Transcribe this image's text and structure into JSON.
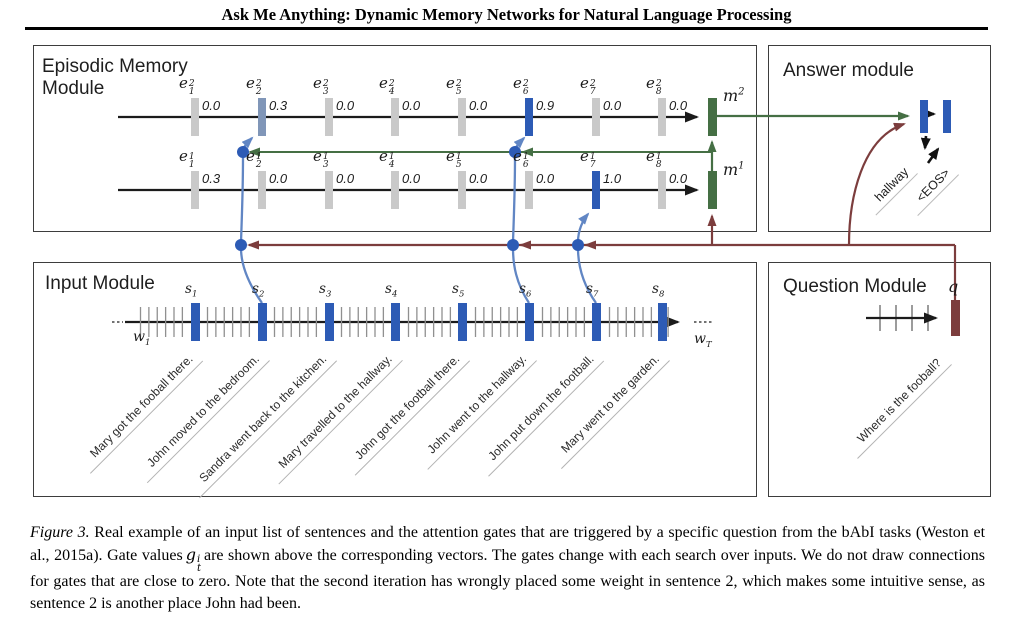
{
  "header": {
    "title": "Ask Me Anything: Dynamic Memory Networks for Natural Language Processing"
  },
  "colors": {
    "active_gate_blue": "#2d5bb5",
    "weak_gate_blue": "#8096b8",
    "inactive_gray": "#c9c9c9",
    "memory_green": "#456f44",
    "question_maroon": "#7c3d3d",
    "attention_curve_blue": "#6186c4",
    "line_black": "#1b1b1b"
  },
  "episodic": {
    "title": "Episodic Memory Module",
    "passes": [
      {
        "m_base": "m",
        "m_sup": "2",
        "vec_base": "e",
        "vec_sup": "2",
        "gates": [
          {
            "sub": "1",
            "value": "0.0",
            "state": "inactive"
          },
          {
            "sub": "2",
            "value": "0.3",
            "state": "weak"
          },
          {
            "sub": "3",
            "value": "0.0",
            "state": "inactive"
          },
          {
            "sub": "4",
            "value": "0.0",
            "state": "inactive"
          },
          {
            "sub": "5",
            "value": "0.0",
            "state": "inactive"
          },
          {
            "sub": "6",
            "value": "0.9",
            "state": "active"
          },
          {
            "sub": "7",
            "value": "0.0",
            "state": "inactive"
          },
          {
            "sub": "8",
            "value": "0.0",
            "state": "inactive"
          }
        ]
      },
      {
        "m_base": "m",
        "m_sup": "1",
        "vec_base": "e",
        "vec_sup": "1",
        "gates": [
          {
            "sub": "1",
            "value": "0.3",
            "state": "inactive"
          },
          {
            "sub": "2",
            "value": "0.0",
            "state": "inactive"
          },
          {
            "sub": "3",
            "value": "0.0",
            "state": "inactive"
          },
          {
            "sub": "4",
            "value": "0.0",
            "state": "inactive"
          },
          {
            "sub": "5",
            "value": "0.0",
            "state": "inactive"
          },
          {
            "sub": "6",
            "value": "0.0",
            "state": "inactive"
          },
          {
            "sub": "7",
            "value": "1.0",
            "state": "active"
          },
          {
            "sub": "8",
            "value": "0.0",
            "state": "inactive"
          }
        ]
      }
    ]
  },
  "input": {
    "title": "Input Module",
    "w_start": {
      "base": "w",
      "sub": "1"
    },
    "w_end": {
      "base": "w",
      "sub": "T"
    },
    "sentences": [
      {
        "marker_base": "s",
        "marker_sub": "1",
        "text": "Mary got the fooball there."
      },
      {
        "marker_base": "s",
        "marker_sub": "2",
        "text": "John moved to the bedroom."
      },
      {
        "marker_base": "s",
        "marker_sub": "3",
        "text": "Sandra went back to the kitchen."
      },
      {
        "marker_base": "s",
        "marker_sub": "4",
        "text": "Mary travelled to the hallway."
      },
      {
        "marker_base": "s",
        "marker_sub": "5",
        "text": "John got the football there."
      },
      {
        "marker_base": "s",
        "marker_sub": "6",
        "text": "John went to the hallway."
      },
      {
        "marker_base": "s",
        "marker_sub": "7",
        "text": "John put down the football."
      },
      {
        "marker_base": "s",
        "marker_sub": "8",
        "text": "Mary went to the garden."
      }
    ]
  },
  "question": {
    "title": "Question Module",
    "q_label": "q",
    "text": "Where is the fooball?"
  },
  "answer": {
    "title": "Answer module",
    "outputs": [
      "hallway",
      "<EOS>"
    ]
  },
  "caption": {
    "figure_label": "Figure 3.",
    "before_math": "Real example of an input list of sentences and the attention gates that are triggered by a specific question from the bAbI tasks (Weston et al., 2015a). Gate values",
    "math": {
      "base": "g",
      "sup": "i",
      "sub": "t"
    },
    "after_math": "are shown above the corresponding vectors. The gates change with each search over inputs. We do not draw connections for gates that are close to zero. Note that the second iteration has wrongly placed some weight in sentence 2, which makes some intuitive sense, as sentence 2 is another place John had been."
  }
}
